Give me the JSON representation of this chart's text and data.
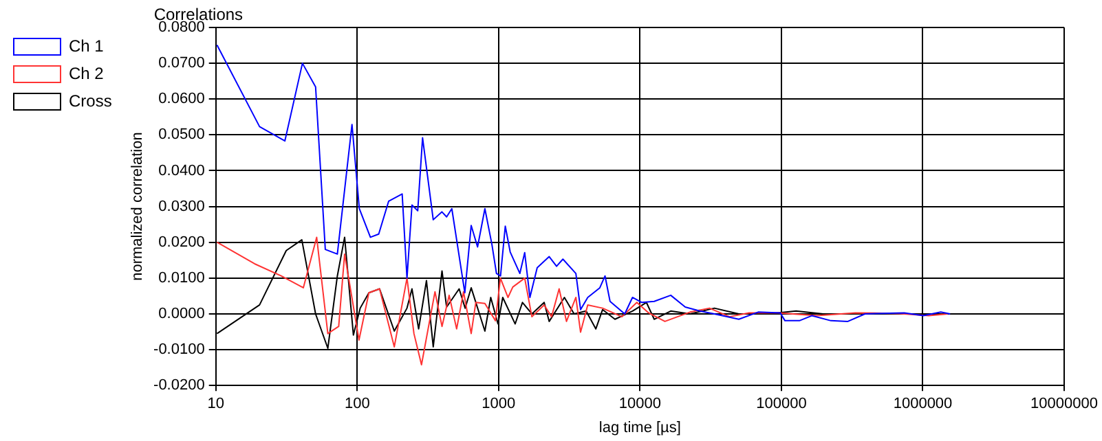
{
  "chart_data": {
    "type": "line",
    "title": "Correlations",
    "xlabel": "lag time [µs]",
    "ylabel": "normalized correlation",
    "log": "x",
    "xlim": [
      10,
      10000000
    ],
    "xticks": [
      10,
      100,
      1000,
      10000,
      100000,
      1000000,
      10000000
    ],
    "ylim": [
      -0.02,
      0.08
    ],
    "yticks": [
      {
        "value": -0.02,
        "label": "-0.0200"
      },
      {
        "value": -0.01,
        "label": "-0.0100"
      },
      {
        "value": 0,
        "label": "0.0000"
      },
      {
        "value": 0.01,
        "label": "0.0100"
      },
      {
        "value": 0.02,
        "label": "0.0200"
      },
      {
        "value": 0.03,
        "label": "0.0300"
      },
      {
        "value": 0.04,
        "label": "0.0400"
      },
      {
        "value": 0.05,
        "label": "0.0500"
      },
      {
        "value": 0.06,
        "label": "0.0600"
      },
      {
        "value": 0.07,
        "label": "0.0700"
      },
      {
        "value": 0.08,
        "label": "0.0800"
      }
    ],
    "grid": true,
    "legend": "top left",
    "marker": "none",
    "line_style": "solid",
    "series": [
      {
        "name": "Ch 1",
        "color": "#0000ff",
        "x": [
          10.2,
          20.4,
          30.8,
          41,
          50.8,
          59.5,
          72.4,
          91.9,
          103.5,
          124,
          142,
          167,
          208,
          225,
          244,
          268,
          290,
          345,
          397,
          429,
          467,
          577,
          640,
          710,
          800,
          897,
          966,
          1032,
          1115,
          1208,
          1414,
          1530,
          1665,
          1875,
          2280,
          2570,
          2850,
          3520,
          3800,
          4270,
          5200,
          5660,
          6140,
          7800,
          8850,
          10300,
          12600,
          16500,
          20900,
          26500,
          33600,
          50000,
          68500,
          98000,
          106000,
          134000,
          164000,
          224000,
          295000,
          390000,
          740000,
          1010000,
          1340000,
          1560000
        ],
        "values": [
          0.0751,
          0.0523,
          0.0483,
          0.07,
          0.0634,
          0.018,
          0.0167,
          0.0529,
          0.0294,
          0.0214,
          0.0223,
          0.0315,
          0.0335,
          0.01,
          0.0304,
          0.0288,
          0.0492,
          0.0263,
          0.0285,
          0.0271,
          0.0294,
          0.0059,
          0.0247,
          0.0187,
          0.0294,
          0.0194,
          0.0113,
          0.0106,
          0.0245,
          0.0173,
          0.0113,
          0.0171,
          0.0046,
          0.0129,
          0.016,
          0.0133,
          0.0153,
          0.0113,
          0.0012,
          0.0046,
          0.0073,
          0.0106,
          0.0035,
          0,
          0.0046,
          0.0032,
          0.0035,
          0.0052,
          0.0019,
          0.0008,
          0,
          -0.0015,
          0.0005,
          0.0003,
          -0.0019,
          -0.0019,
          -0.0005,
          -0.0019,
          -0.0021,
          0,
          0.0003,
          -0.0005,
          0.0005,
          0
        ]
      },
      {
        "name": "Ch 2",
        "color": "#ff3333",
        "x": [
          10.2,
          18.8,
          29,
          41.6,
          51.7,
          62,
          74,
          81.5,
          103,
          121,
          144,
          183,
          225,
          252,
          285,
          355,
          398,
          447,
          505,
          565,
          640,
          690,
          800,
          950,
          1030,
          1165,
          1260,
          1530,
          1720,
          2100,
          2370,
          2680,
          3020,
          3520,
          3800,
          4270,
          5440,
          7450,
          9500,
          11500,
          15000,
          22600,
          31000,
          43000,
          59000,
          95000,
          178000,
          333000,
          680000,
          1100000,
          1500000
        ],
        "values": [
          0.02,
          0.014,
          0.0106,
          0.0073,
          0.0214,
          -0.0055,
          -0.0035,
          0.0167,
          -0.0073,
          0.0059,
          0.007,
          -0.0092,
          0.01,
          -0.0055,
          -0.0142,
          0.0062,
          -0.0035,
          0.0052,
          -0.0042,
          0.0062,
          -0.0055,
          0.0032,
          0.0029,
          -0.0019,
          0.01,
          0.0046,
          0.0075,
          0.01,
          -0.0008,
          0.0025,
          -0.0008,
          0.007,
          -0.0021,
          0.0046,
          -0.0051,
          0.0025,
          0.0016,
          -0.0008,
          0.0032,
          0.0003,
          -0.0021,
          0.0005,
          0.0016,
          -0.0008,
          0.0003,
          0.0003,
          -0.0005,
          0.0003,
          0.0001,
          -0.0005,
          0
        ]
      },
      {
        "name": "Cross",
        "color": "#000000",
        "x": [
          10.2,
          20.4,
          31.5,
          40.6,
          50.8,
          62,
          72.4,
          81.5,
          94,
          105,
          121,
          144,
          183,
          225,
          244,
          272,
          309,
          345,
          398,
          429,
          526,
          580,
          640,
          800,
          880,
          990,
          1070,
          1310,
          1475,
          1720,
          2100,
          2280,
          2920,
          3420,
          4160,
          4870,
          5440,
          6650,
          8850,
          11100,
          12600,
          16500,
          22600,
          33600,
          50000,
          80000,
          127000,
          197000,
          390000,
          740000,
          1500000
        ],
        "values": [
          -0.0055,
          0.0025,
          0.0177,
          0.0207,
          0,
          -0.0096,
          0.0106,
          0.0214,
          -0.0059,
          0.0016,
          0.0059,
          0.007,
          -0.0048,
          0.0016,
          0.007,
          -0.0042,
          0.0093,
          -0.0092,
          0.012,
          0.0019,
          0.007,
          0.0016,
          0.0073,
          -0.0048,
          0.0046,
          -0.0028,
          0.0046,
          -0.0028,
          0.0032,
          0,
          0.0032,
          -0.0021,
          0.0046,
          0,
          0.0008,
          -0.0042,
          0.0012,
          -0.0015,
          0.0008,
          0.0032,
          -0.0015,
          0.0008,
          0,
          0.0016,
          0,
          0,
          0.0008,
          0,
          0,
          0,
          0
        ]
      }
    ]
  }
}
